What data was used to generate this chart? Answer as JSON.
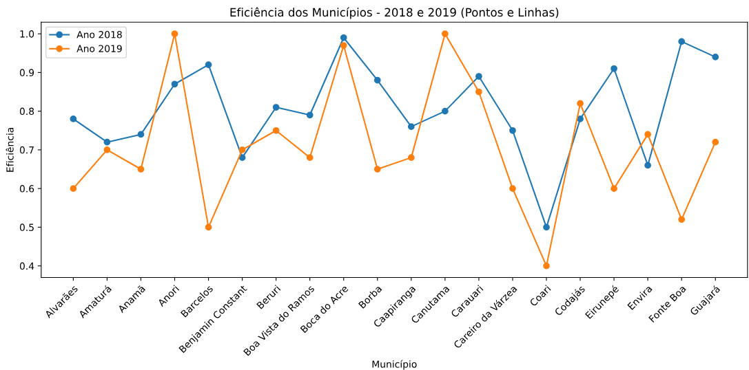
{
  "chart_data": {
    "type": "line",
    "title": "Eficiência dos Municípios - 2018 e 2019 (Pontos e Linhas)",
    "xlabel": "Município",
    "ylabel": "Eficiência",
    "categories": [
      "Alvarães",
      "Amaturá",
      "Anamã",
      "Anori",
      "Barcelos",
      "Benjamin Constant",
      "Beruri",
      "Boa Vista do Ramos",
      "Boca do Acre",
      "Borba",
      "Caapiranga",
      "Canutama",
      "Carauari",
      "Careiro da Várzea",
      "Coari",
      "Codajás",
      "Eirunepé",
      "Envira",
      "Fonte Boa",
      "Guajará"
    ],
    "series": [
      {
        "name": "Ano 2018",
        "color": "#1f77b4",
        "values": [
          0.78,
          0.72,
          0.74,
          0.87,
          0.92,
          0.68,
          0.81,
          0.79,
          0.99,
          0.88,
          0.76,
          0.8,
          0.89,
          0.75,
          0.5,
          0.78,
          0.91,
          0.66,
          0.98,
          0.94
        ]
      },
      {
        "name": "Ano 2019",
        "color": "#ff7f0e",
        "values": [
          0.6,
          0.7,
          0.65,
          1.0,
          0.5,
          0.7,
          0.75,
          0.68,
          0.97,
          0.65,
          0.68,
          1.0,
          0.85,
          0.6,
          0.4,
          0.82,
          0.6,
          0.74,
          0.52,
          0.72
        ]
      }
    ],
    "ylim": [
      0.37,
      1.03
    ],
    "yticks": [
      {
        "value": 0.4,
        "label": "0.4"
      },
      {
        "value": 0.5,
        "label": "0.5"
      },
      {
        "value": 0.6,
        "label": "0.6"
      },
      {
        "value": 0.7,
        "label": "0.7"
      },
      {
        "value": 0.8,
        "label": "0.8"
      },
      {
        "value": 0.9,
        "label": "0.9"
      },
      {
        "value": 1.0,
        "label": "1.0"
      }
    ],
    "marker": "circle",
    "line_style": "solid",
    "legend": "top left",
    "grid": false
  }
}
